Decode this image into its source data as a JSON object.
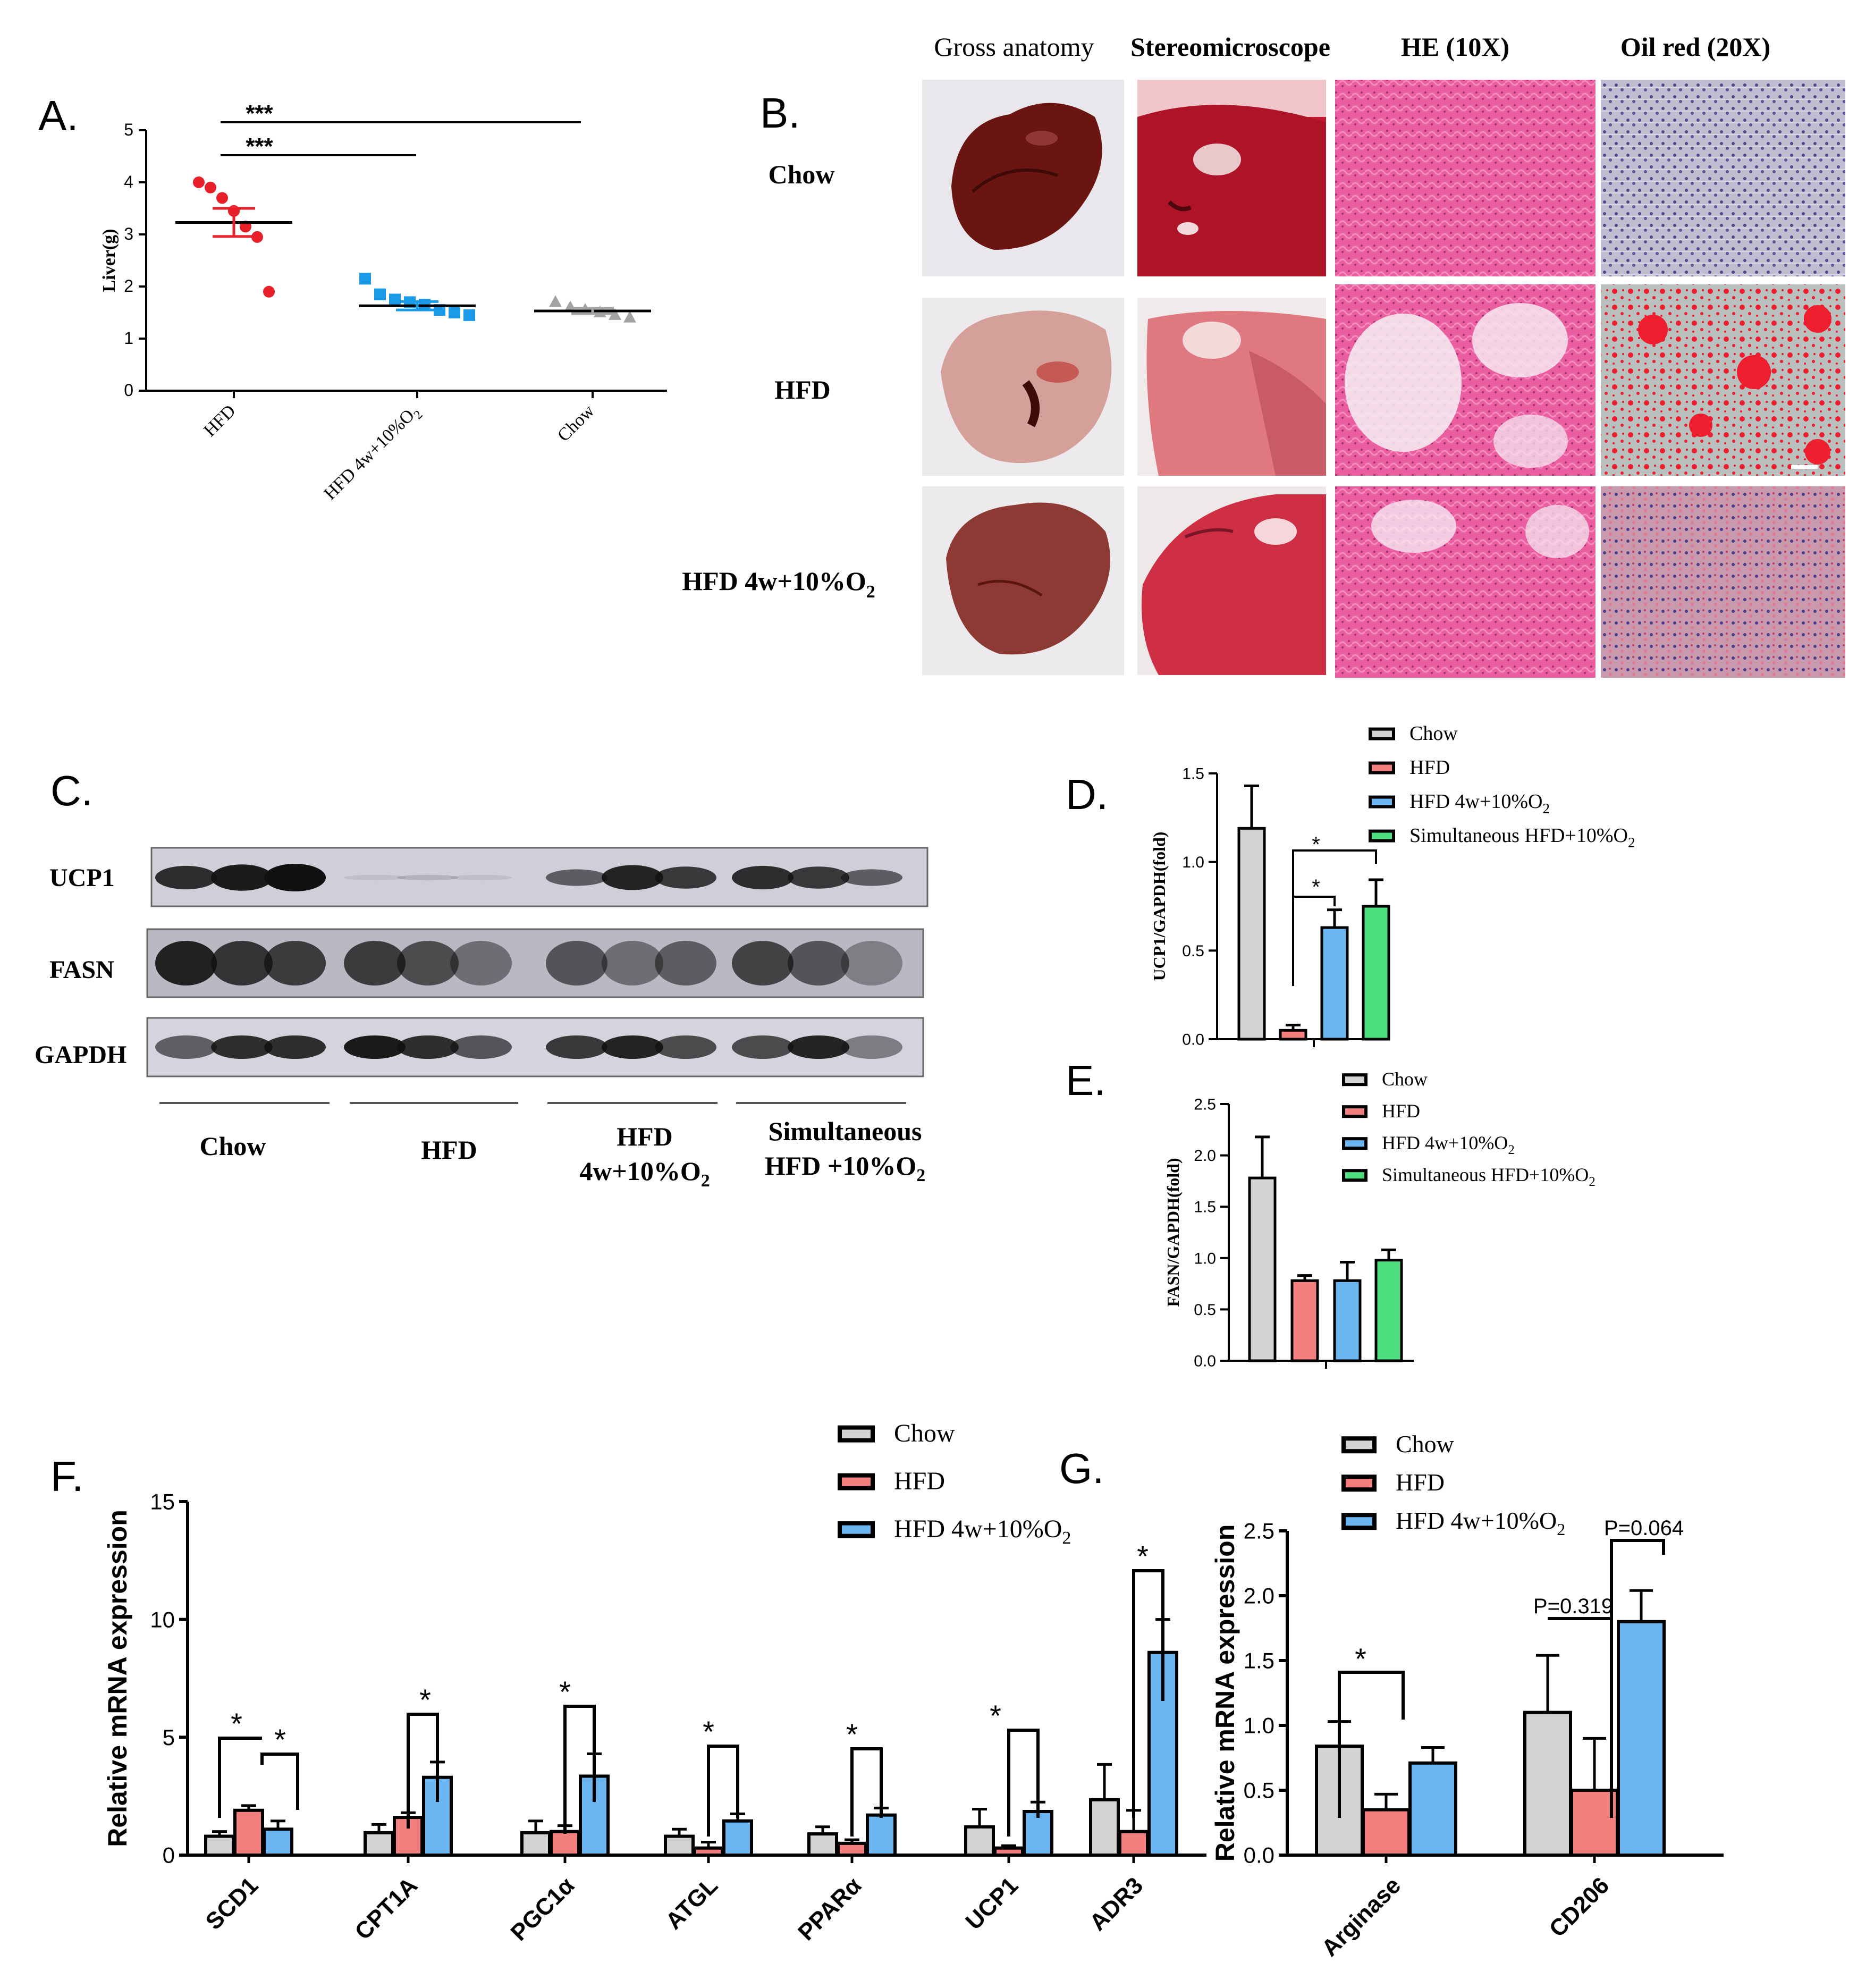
{
  "panel_letters": {
    "A": "A.",
    "B": "B.",
    "C": "C.",
    "D": "D.",
    "E": "E.",
    "F": "F.",
    "G": "G."
  },
  "colors": {
    "chow": "#d3d3d3",
    "hfd": "#f47f7f",
    "hfd4w": "#6cb6f2",
    "simult": "#4ee07f",
    "red_dots": "#e8202a",
    "blue_sq": "#1a9ae8",
    "gray_tri": "#a3a3a3"
  },
  "panelB": {
    "col_headers": [
      "Gross anatomy",
      "Stereomicroscope",
      "HE (10X)",
      "Oil red (20X)"
    ],
    "row_chow": "Chow",
    "row_hfd": "HFD",
    "row_hfd4w_main": "HFD 4w+10%O",
    "row_hfd4w_sub": "2"
  },
  "panelC": {
    "rows": [
      "UCP1",
      "FASN",
      "GAPDH"
    ],
    "group_chow": "Chow",
    "group_hfd": "HFD",
    "group_hfd4w_l1": "HFD",
    "group_hfd4w_l2": "4w+10%O",
    "group_sim_l1": "Simultaneous",
    "group_sim_l2": "HFD +10%O",
    "sub2": "2"
  },
  "legend_labels": {
    "chow": "Chow",
    "hfd": "HFD",
    "hfd4w": "HFD 4w+10%O",
    "simult": "Simultaneous HFD+10%O",
    "sub2": "2"
  },
  "chart_data": [
    {
      "panel": "A",
      "type": "scatter",
      "ylabel": "Liver(g)",
      "ylim": [
        0,
        5
      ],
      "yticks": [
        0,
        1,
        2,
        3,
        4,
        5
      ],
      "categories": [
        "HFD",
        "HFD 4w+10%O2",
        "Chow"
      ],
      "points": [
        [
          4.0,
          3.9,
          3.7,
          3.45,
          3.15,
          2.95,
          1.9
        ],
        [
          2.15,
          1.85,
          1.75,
          1.7,
          1.65,
          1.55,
          1.5,
          1.45
        ],
        [
          1.7,
          1.6,
          1.55,
          1.5,
          1.45,
          1.4
        ]
      ],
      "means": [
        3.23,
        1.63,
        1.53
      ],
      "sem": [
        0.27,
        0.08,
        0.05
      ],
      "significance": [
        {
          "from": "HFD",
          "to": "Chow",
          "label": "***"
        },
        {
          "from": "HFD",
          "to": "HFD 4w+10%O2",
          "label": "***"
        }
      ]
    },
    {
      "panel": "D",
      "type": "bar",
      "ylabel": "UCP1/GAPDH(fold)",
      "ylim": [
        0,
        1.5
      ],
      "yticks": [
        "0.0",
        "0.5",
        "1.0",
        "1.5"
      ],
      "series": [
        {
          "name": "Chow",
          "value": 1.19,
          "error": 0.24
        },
        {
          "name": "HFD",
          "value": 0.05,
          "error": 0.03
        },
        {
          "name": "HFD 4w+10%O2",
          "value": 0.63,
          "error": 0.1
        },
        {
          "name": "Simultaneous HFD+10%O2",
          "value": 0.75,
          "error": 0.15
        }
      ],
      "significance": [
        {
          "from": "HFD",
          "to": "Simultaneous HFD+10%O2",
          "label": "*"
        },
        {
          "from": "HFD",
          "to": "HFD 4w+10%O2",
          "label": "*"
        }
      ]
    },
    {
      "panel": "E",
      "type": "bar",
      "ylabel": "FASN/GAPDH(fold)",
      "ylim": [
        0,
        2.5
      ],
      "yticks": [
        "0.0",
        "0.5",
        "1.0",
        "1.5",
        "2.0",
        "2.5"
      ],
      "series": [
        {
          "name": "Chow",
          "value": 1.78,
          "error": 0.4
        },
        {
          "name": "HFD",
          "value": 0.78,
          "error": 0.05
        },
        {
          "name": "HFD 4w+10%O2",
          "value": 0.78,
          "error": 0.18
        },
        {
          "name": "Simultaneous HFD+10%O2",
          "value": 0.98,
          "error": 0.1
        }
      ]
    },
    {
      "panel": "F",
      "type": "bar",
      "ylabel": "Relative mRNA expression",
      "ylim": [
        0,
        15
      ],
      "yticks": [
        "0",
        "5",
        "10",
        "15"
      ],
      "categories": [
        "SCD1",
        "CPT1A",
        "PGC1α",
        "ATGL",
        "PPARα",
        "UCP1",
        "ADR3"
      ],
      "series": [
        {
          "name": "Chow",
          "values": [
            0.8,
            0.95,
            0.95,
            0.8,
            0.9,
            1.2,
            2.35
          ],
          "errors": [
            0.2,
            0.35,
            0.5,
            0.3,
            0.3,
            0.75,
            1.5
          ]
        },
        {
          "name": "HFD",
          "values": [
            1.9,
            1.6,
            1.0,
            0.3,
            0.5,
            0.3,
            1.0
          ],
          "errors": [
            0.2,
            0.2,
            0.25,
            0.25,
            0.15,
            0.1,
            0.9
          ]
        },
        {
          "name": "HFD 4w+10%O2",
          "values": [
            1.1,
            3.3,
            3.35,
            1.45,
            1.7,
            1.85,
            8.6
          ],
          "errors": [
            0.35,
            0.65,
            0.95,
            0.3,
            0.3,
            0.4,
            1.4
          ]
        }
      ],
      "significance": [
        {
          "category": "SCD1",
          "from": "Chow",
          "to": "HFD",
          "label": "*"
        },
        {
          "category": "SCD1",
          "from": "HFD",
          "to": "HFD 4w+10%O2",
          "label": "*"
        },
        {
          "category": "CPT1A",
          "from": "HFD",
          "to": "HFD 4w+10%O2",
          "label": "*"
        },
        {
          "category": "PGC1α",
          "from": "HFD",
          "to": "HFD 4w+10%O2",
          "label": "*"
        },
        {
          "category": "ATGL",
          "from": "HFD",
          "to": "HFD 4w+10%O2",
          "label": "*"
        },
        {
          "category": "PPARα",
          "from": "HFD",
          "to": "HFD 4w+10%O2",
          "label": "*"
        },
        {
          "category": "UCP1",
          "from": "HFD",
          "to": "HFD 4w+10%O2",
          "label": "*"
        },
        {
          "category": "ADR3",
          "from": "HFD",
          "to": "HFD 4w+10%O2",
          "label": "*"
        }
      ]
    },
    {
      "panel": "G",
      "type": "bar",
      "ylabel": "Relative mRNA expression",
      "ylim": [
        0,
        2.5
      ],
      "yticks": [
        "0.0",
        "0.5",
        "1.0",
        "1.5",
        "2.0",
        "2.5"
      ],
      "categories": [
        "Arginase",
        "CD206"
      ],
      "series": [
        {
          "name": "Chow",
          "values": [
            0.84,
            1.1
          ],
          "errors": [
            0.19,
            0.44
          ]
        },
        {
          "name": "HFD",
          "values": [
            0.35,
            0.5
          ],
          "errors": [
            0.12,
            0.4
          ]
        },
        {
          "name": "HFD 4w+10%O2",
          "values": [
            0.71,
            1.8
          ],
          "errors": [
            0.12,
            0.24
          ]
        }
      ],
      "significance": [
        {
          "category": "Arginase",
          "from": "Chow",
          "to": "HFD",
          "label": "*"
        },
        {
          "category": "CD206",
          "from": "Chow",
          "to": "HFD",
          "label": "P=0.319"
        },
        {
          "category": "CD206",
          "from": "HFD",
          "to": "HFD 4w+10%O2",
          "label": "P=0.064"
        }
      ]
    }
  ]
}
